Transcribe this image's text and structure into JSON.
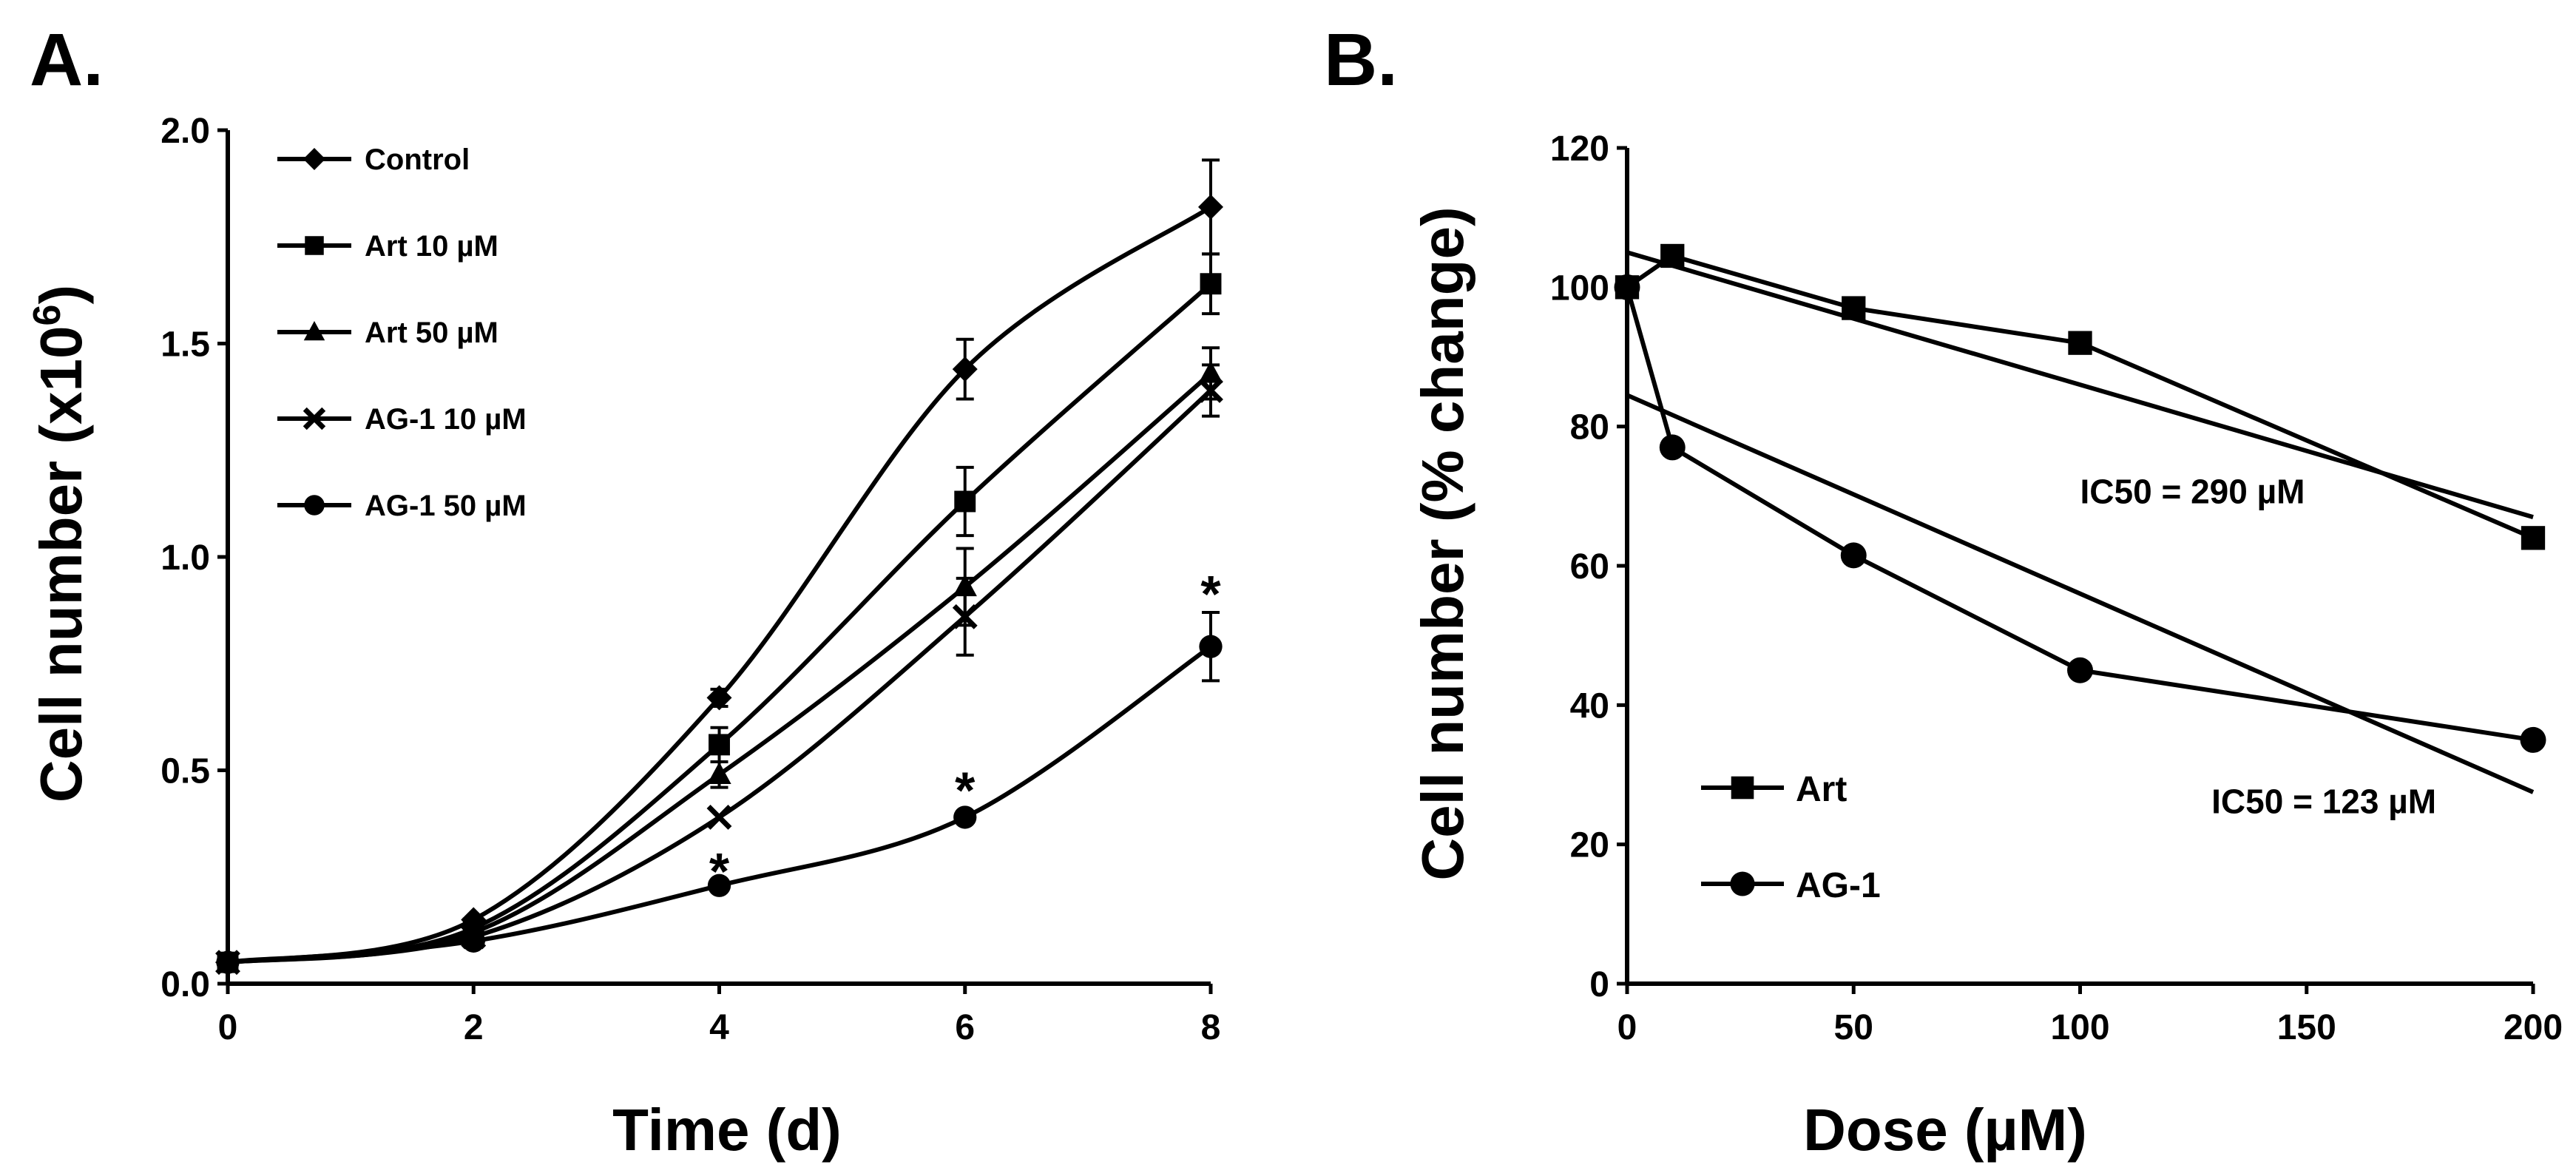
{
  "chart_data": [
    {
      "panel": "A.",
      "type": "line",
      "xlabel": "Time (d)",
      "ylabel_main": "Cell number (x10",
      "ylabel_sup": "6",
      "ylabel_end": ")",
      "xlim": [
        0,
        8
      ],
      "ylim": [
        0,
        2.0
      ],
      "xticks": [
        0,
        2,
        4,
        6,
        8
      ],
      "xtick_labels": [
        "0",
        "2",
        "4",
        "6",
        "8"
      ],
      "yticks": [
        0,
        0.5,
        1.0,
        1.5,
        2.0
      ],
      "ytick_labels": [
        "0.0",
        "0.5",
        "1.0",
        "1.5",
        "2.0"
      ],
      "legend_position": "top-left",
      "grid": false,
      "series": [
        {
          "name": "Control",
          "marker": "diamond",
          "x": [
            0,
            2,
            4,
            6,
            8
          ],
          "y": [
            0.05,
            0.15,
            0.67,
            1.44,
            1.82
          ],
          "err": [
            0,
            0,
            0.02,
            0.07,
            0.11
          ]
        },
        {
          "name": "Art 10 µM",
          "marker": "square",
          "x": [
            0,
            2,
            4,
            6,
            8
          ],
          "y": [
            0.05,
            0.13,
            0.56,
            1.13,
            1.64
          ],
          "err": [
            0,
            0,
            0.04,
            0.08,
            0.07
          ]
        },
        {
          "name": "Art 50 µM",
          "marker": "triangle",
          "x": [
            0,
            2,
            4,
            6,
            8
          ],
          "y": [
            0.05,
            0.12,
            0.49,
            0.93,
            1.43
          ],
          "err": [
            0,
            0,
            0.03,
            0.09,
            0.06
          ]
        },
        {
          "name": "AG-1 10 µM",
          "marker": "x",
          "x": [
            0,
            2,
            4,
            6,
            8
          ],
          "y": [
            0.05,
            0.11,
            0.39,
            0.86,
            1.39
          ],
          "err": [
            0,
            0,
            0,
            0.09,
            0.06
          ]
        },
        {
          "name": "AG-1 50 µM",
          "marker": "circle",
          "x": [
            0,
            2,
            4,
            6,
            8
          ],
          "y": [
            0.05,
            0.1,
            0.23,
            0.39,
            0.79
          ],
          "err": [
            0,
            0,
            0,
            0,
            0.08
          ]
        }
      ],
      "annotations": [
        {
          "text": "*",
          "x": 4,
          "y": 0.27
        },
        {
          "text": "*",
          "x": 6,
          "y": 0.46
        },
        {
          "text": "*",
          "x": 8,
          "y": 0.92
        }
      ]
    },
    {
      "panel": "B.",
      "type": "line",
      "xlabel": "Dose (µM)",
      "ylabel": "Cell number (% change)",
      "xlim": [
        0,
        200
      ],
      "ylim": [
        0,
        120
      ],
      "xticks": [
        0,
        50,
        100,
        150,
        200
      ],
      "xtick_labels": [
        "0",
        "50",
        "100",
        "150",
        "200"
      ],
      "yticks": [
        0,
        20,
        40,
        60,
        80,
        100,
        120
      ],
      "ytick_labels": [
        "0",
        "20",
        "40",
        "60",
        "80",
        "100",
        "120"
      ],
      "legend_position": "bottom-left",
      "grid": false,
      "series": [
        {
          "name": "Art",
          "marker": "square",
          "x": [
            0,
            10,
            50,
            100,
            200
          ],
          "y": [
            100,
            104.5,
            97,
            92,
            64
          ]
        },
        {
          "name": "AG-1",
          "marker": "circle",
          "x": [
            0,
            10,
            50,
            100,
            200
          ],
          "y": [
            100,
            77,
            61.5,
            45,
            35
          ]
        }
      ],
      "trendlines": [
        {
          "name": "Art fit",
          "x": [
            0,
            200
          ],
          "y": [
            105,
            67
          ]
        },
        {
          "name": "AG-1 fit",
          "x": [
            0,
            200
          ],
          "y": [
            84.5,
            27.5
          ]
        }
      ],
      "annotations": [
        {
          "text": "IC50 = 290 µM",
          "x": 100,
          "y": 69,
          "anchor": "start"
        },
        {
          "text": "IC50 = 123 µM",
          "x": 129,
          "y": 24.5,
          "anchor": "start"
        }
      ]
    }
  ]
}
